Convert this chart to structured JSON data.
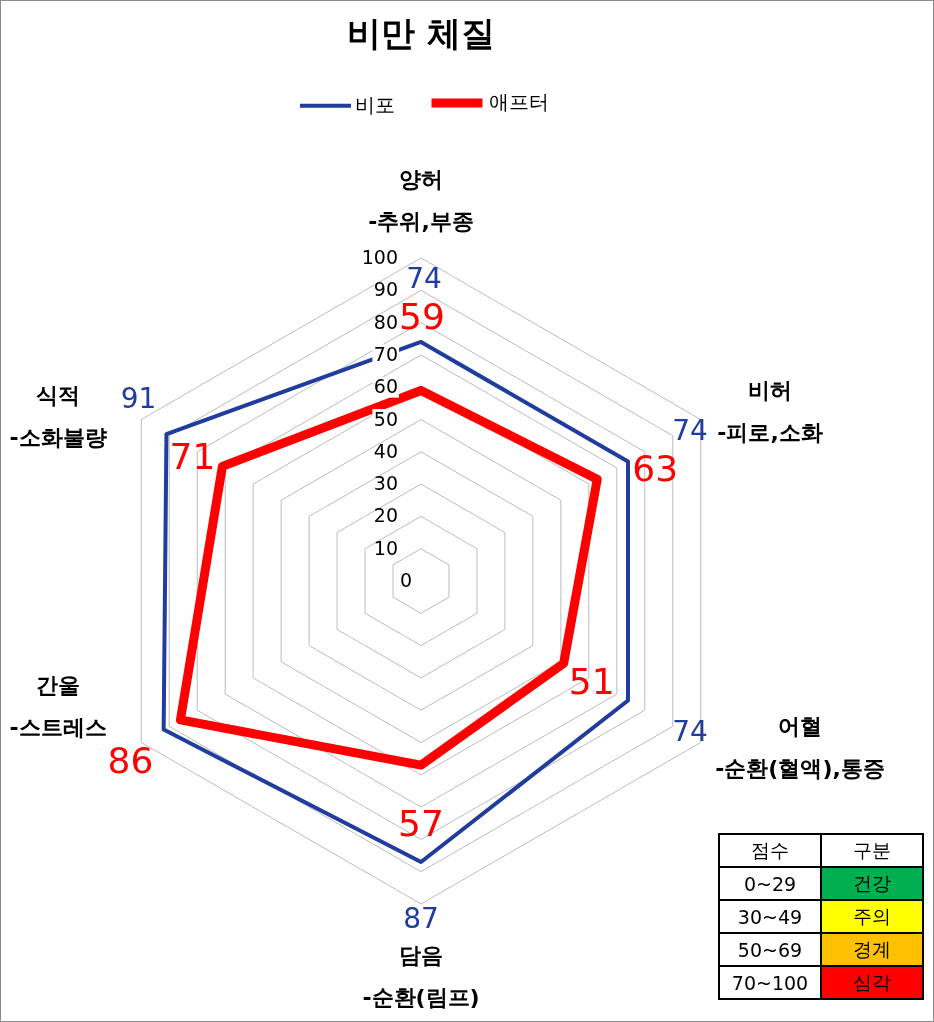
{
  "chart_data": [
    {
      "type": "radar",
      "title": "비만 체질",
      "categories": [
        "양허\n-추위,부종",
        "비허\n-피로,소화",
        "어혈\n-순환(혈액),통증",
        "담음\n-순환(림프)",
        "간울\n-스트레스",
        "식적\n-소화불량"
      ],
      "series": [
        {
          "name": "비포",
          "color": "#1f3c9e",
          "values": [
            74,
            74,
            74,
            87,
            92,
            91
          ],
          "value_labels": [
            "74",
            "74",
            "74",
            "87",
            null,
            "91"
          ]
        },
        {
          "name": "애프터",
          "color": "#ff0000",
          "values": [
            59,
            63,
            51,
            57,
            86,
            71
          ],
          "value_labels": [
            "59",
            "63",
            "51",
            "57",
            "86",
            "71"
          ]
        }
      ],
      "ylim": [
        0,
        100
      ],
      "yticks": [
        0,
        10,
        20,
        30,
        40,
        50,
        60,
        70,
        80,
        90,
        100
      ],
      "grid": true,
      "legend": "top"
    },
    {
      "type": "other",
      "annotations": [
        "점수",
        "구분",
        "0~29",
        "건강",
        "30~49",
        "주의",
        "50~69",
        "경계",
        "70~100",
        "심각"
      ],
      "colors": [
        "#00b050",
        "#ffff00",
        "#ffc000",
        "#ff0000"
      ]
    }
  ]
}
